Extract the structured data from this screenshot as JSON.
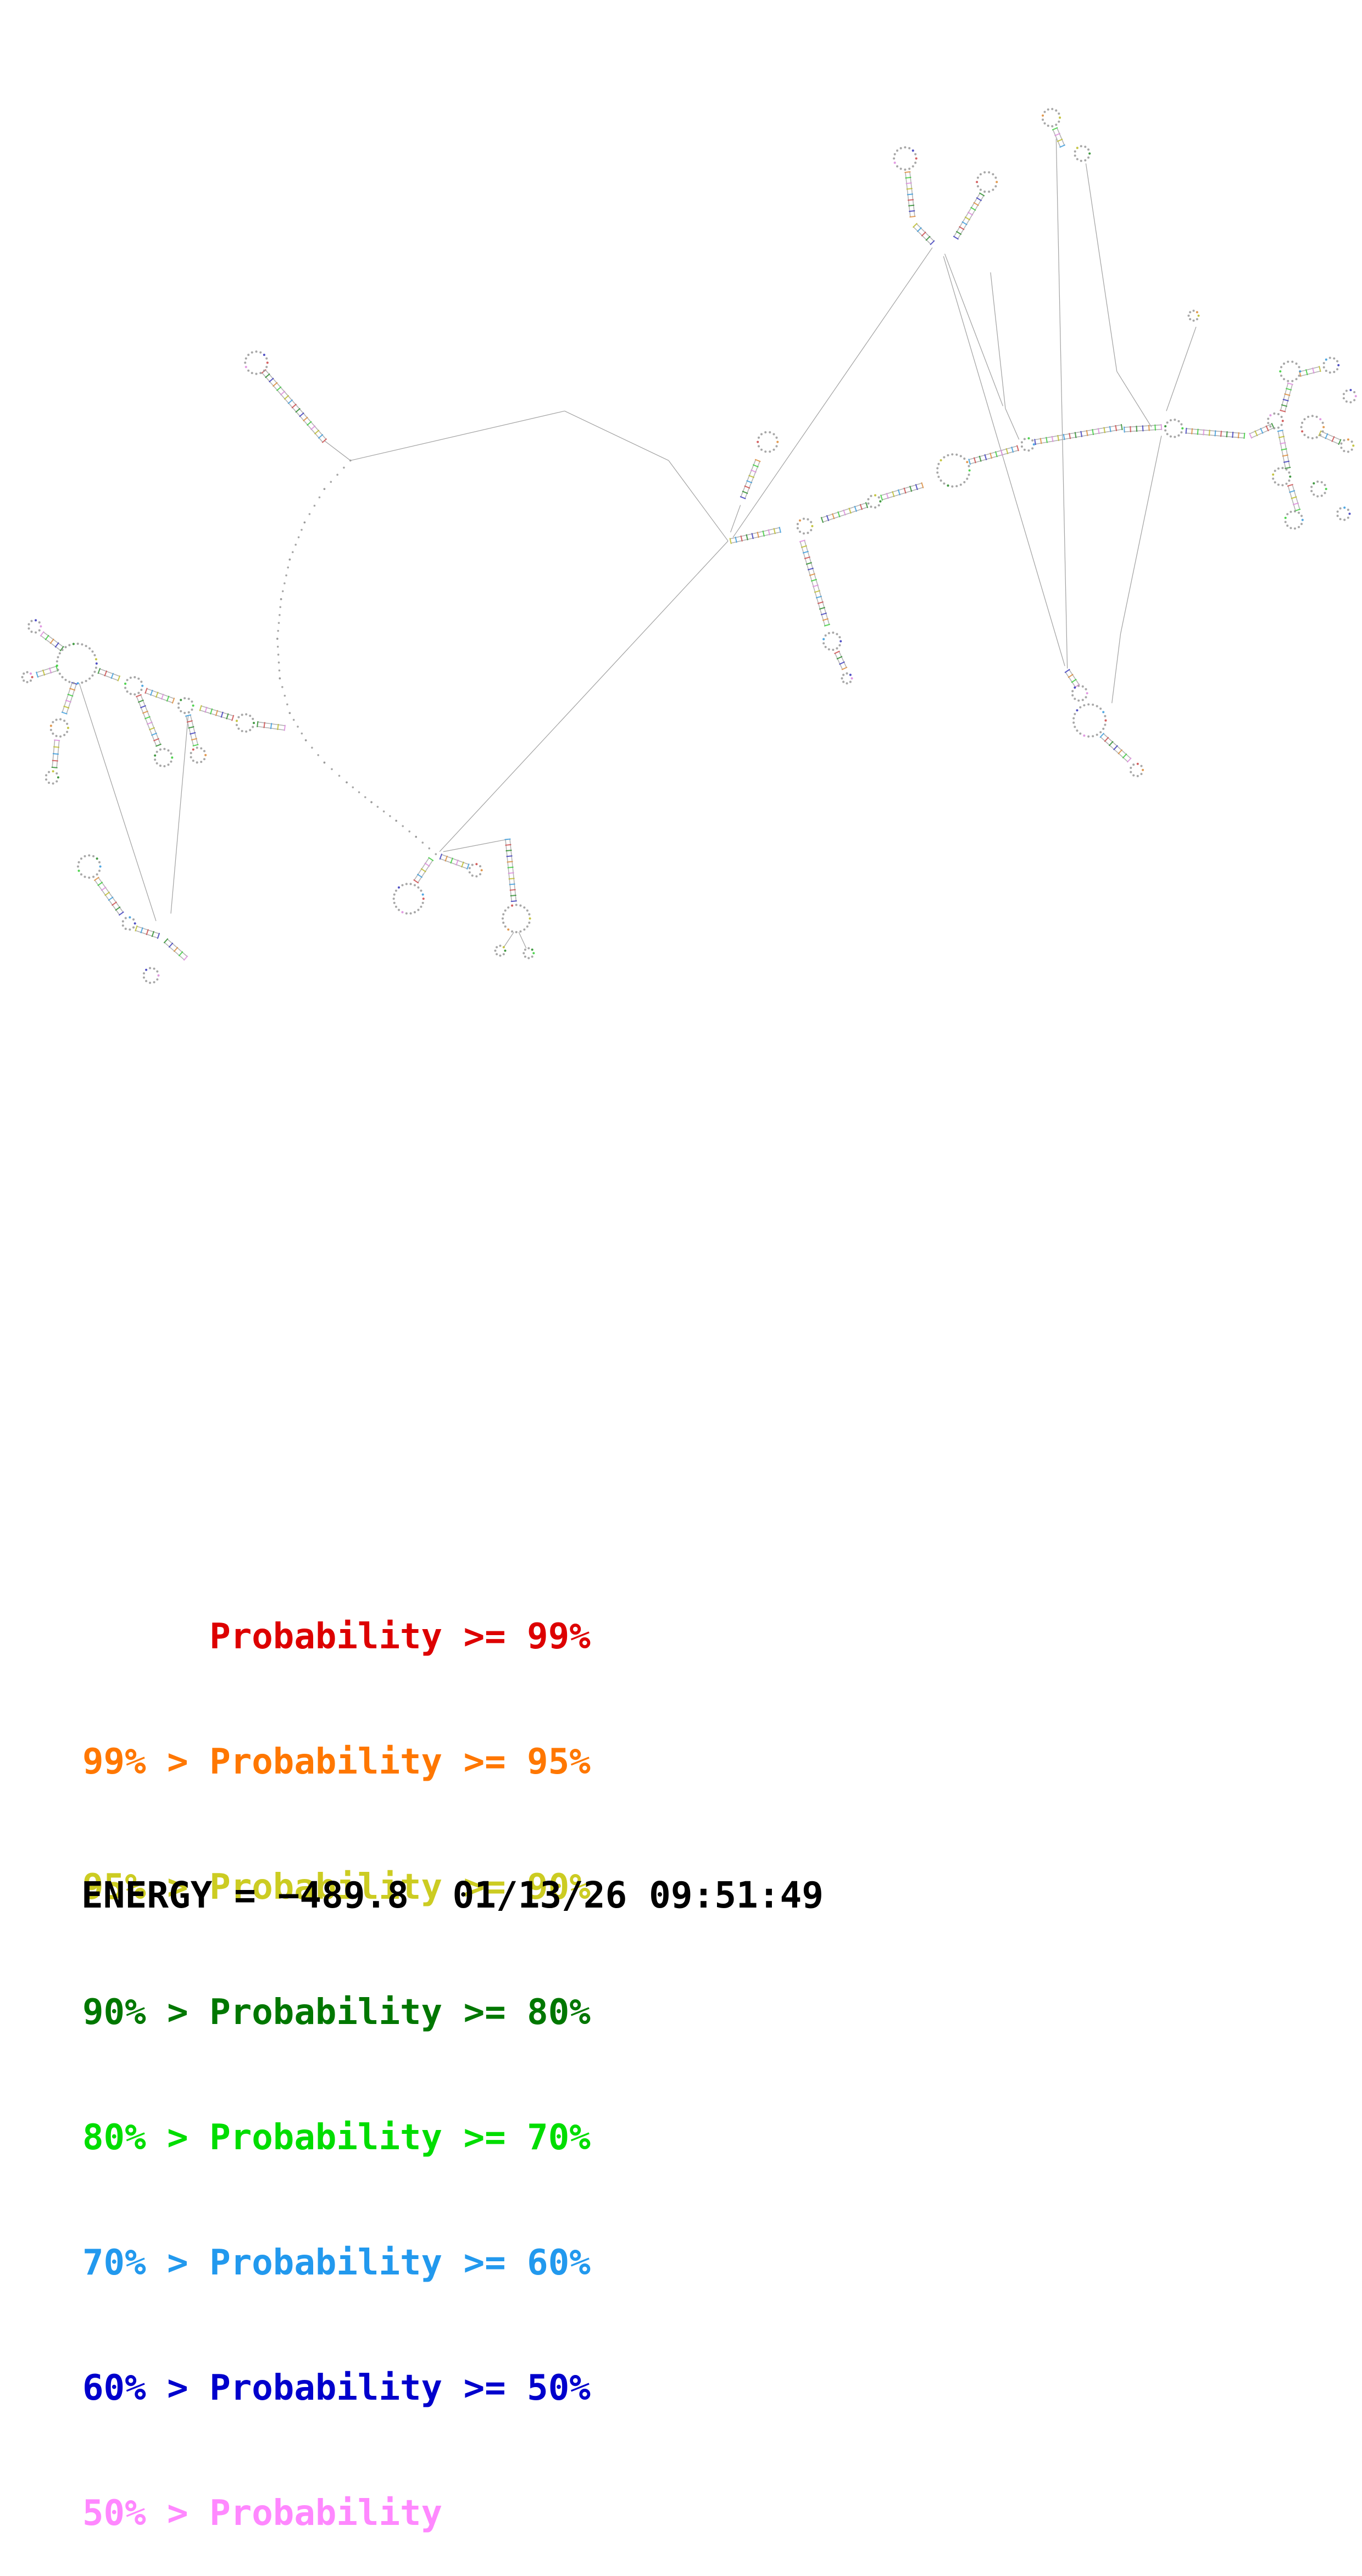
{
  "legend": {
    "items": [
      {
        "text": "      Probability >= 99%",
        "color": "#dd0000"
      },
      {
        "text": "99% > Probability >= 95%",
        "color": "#ff7700"
      },
      {
        "text": "95% > Probability >= 90%",
        "color": "#cccc22"
      },
      {
        "text": "90% > Probability >= 80%",
        "color": "#007700"
      },
      {
        "text": "80% > Probability >= 70%",
        "color": "#00dd00"
      },
      {
        "text": "70% > Probability >= 60%",
        "color": "#2299ee"
      },
      {
        "text": "60% > Probability >= 50%",
        "color": "#0000cc"
      },
      {
        "text": "50% > Probability",
        "color": "#ff88ff"
      }
    ]
  },
  "footer": {
    "energy_line": "ENERGY = −489.8  01/13/26 09:51:49"
  }
}
